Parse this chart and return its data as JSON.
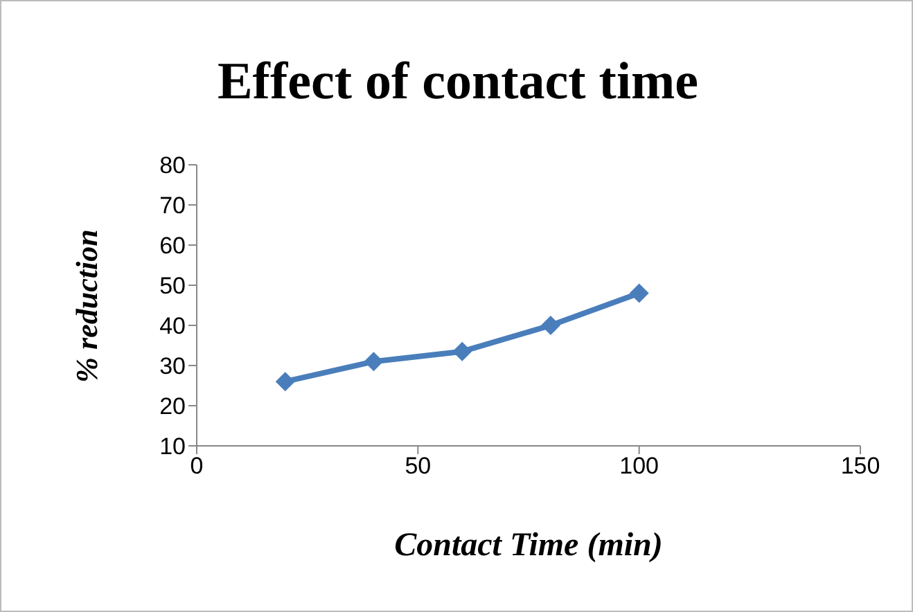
{
  "chart_data": {
    "type": "line",
    "title": "Effect of contact time",
    "xlabel": "Contact Time (min)",
    "ylabel": "% reduction",
    "x": [
      20,
      40,
      60,
      80,
      100
    ],
    "series": [
      {
        "color": "#4a7ebb",
        "values": [
          26,
          31,
          33.5,
          40,
          48
        ]
      }
    ],
    "xlim": [
      0,
      150
    ],
    "xticks": [
      0,
      50,
      100,
      150
    ],
    "ylim": [
      10,
      80
    ],
    "yticks": [
      10,
      20,
      30,
      40,
      50,
      60,
      70,
      80
    ],
    "grid": false,
    "legend": false,
    "marker": "diamond",
    "line_style": "solid"
  }
}
